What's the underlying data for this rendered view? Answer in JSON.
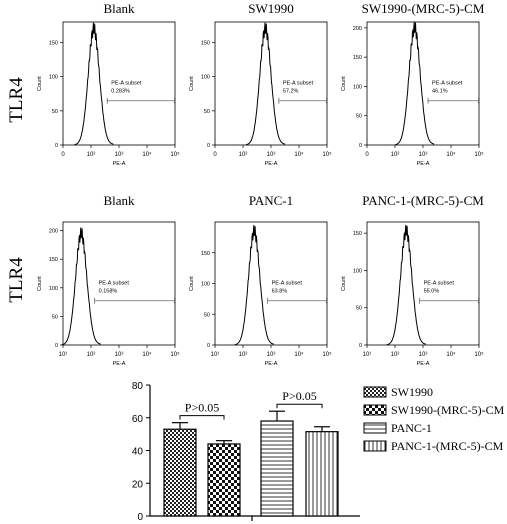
{
  "row_labels": [
    "TLR4",
    "TLR4"
  ],
  "chart_data": [
    {
      "type": "area",
      "title": "Blank",
      "xlabel": "PE-A",
      "ylabel": "Count",
      "xscale": "log",
      "x_ticks": [
        "0",
        "10²",
        "10³",
        "10⁴",
        "10⁵"
      ],
      "y_ticks": [
        "0",
        "50",
        "100",
        "150"
      ],
      "ylim": [
        0,
        180
      ],
      "peak": {
        "log10_x": 2.1,
        "count": 170
      },
      "gate": {
        "name": "PE-A subset",
        "value": "0.283%"
      }
    },
    {
      "type": "area",
      "title": "SW1990",
      "xlabel": "PE-A",
      "ylabel": "Count",
      "xscale": "log",
      "x_ticks": [
        "0",
        "10²",
        "10³",
        "10⁴",
        "10⁵"
      ],
      "y_ticks": [
        "0",
        "50",
        "100",
        "150"
      ],
      "ylim": [
        0,
        180
      ],
      "peak": {
        "log10_x": 2.8,
        "count": 170
      },
      "gate": {
        "name": "PE-A subset",
        "value": "57.2%"
      }
    },
    {
      "type": "area",
      "title": "SW1990-(MRC-5)-CM",
      "xlabel": "PE-A",
      "ylabel": "Count",
      "xscale": "log",
      "x_ticks": [
        "0",
        "10²",
        "10³",
        "10⁴",
        "10⁵"
      ],
      "y_ticks": [
        "0",
        "50",
        "100",
        "150",
        "200"
      ],
      "ylim": [
        0,
        210
      ],
      "peak": {
        "log10_x": 2.7,
        "count": 200
      },
      "gate": {
        "name": "PE-A subset",
        "value": "46.1%"
      }
    },
    {
      "type": "area",
      "title": "Blank",
      "xlabel": "PE-A",
      "ylabel": "Count",
      "xscale": "log",
      "x_ticks": [
        "10¹",
        "10²",
        "10³",
        "10⁴",
        "10⁵"
      ],
      "y_ticks": [
        "0",
        "50",
        "100",
        "150",
        "200"
      ],
      "ylim": [
        0,
        215
      ],
      "peak": {
        "log10_x": 1.65,
        "count": 195
      },
      "gate": {
        "name": "PE-A subset",
        "value": "0.158%"
      }
    },
    {
      "type": "area",
      "title": "PANC-1",
      "xlabel": "PE-A",
      "ylabel": "Count",
      "xscale": "log",
      "x_ticks": [
        "10¹",
        "10²",
        "10³",
        "10⁴",
        "10⁵"
      ],
      "y_ticks": [
        "0",
        "50",
        "100",
        "150"
      ],
      "ylim": [
        0,
        200
      ],
      "peak": {
        "log10_x": 2.4,
        "count": 185
      },
      "gate": {
        "name": "PE-A subset",
        "value": "63.8%"
      }
    },
    {
      "type": "area",
      "title": "PANC-1-(MRC-5)-CM",
      "xlabel": "PE-A",
      "ylabel": "Count",
      "xscale": "log",
      "x_ticks": [
        "10¹",
        "10²",
        "10³",
        "10⁴",
        "10⁵"
      ],
      "y_ticks": [
        "0",
        "50",
        "100",
        "150"
      ],
      "ylim": [
        0,
        165
      ],
      "peak": {
        "log10_x": 2.4,
        "count": 153
      },
      "gate": {
        "name": "PE-A subset",
        "value": "55.0%"
      }
    },
    {
      "type": "bar",
      "y_ticks": [
        0,
        20,
        40,
        60,
        80
      ],
      "ylim": [
        0,
        80
      ],
      "series": [
        {
          "name": "SW1990",
          "value": 53,
          "error": 4,
          "pattern": "dense-check"
        },
        {
          "name": "SW1990-(MRC-5)-CM",
          "value": 44,
          "error": 2,
          "pattern": "checker"
        },
        {
          "name": "PANC-1",
          "value": 58,
          "error": 6,
          "pattern": "horizontal"
        },
        {
          "name": "PANC-1-(MRC-5)-CM",
          "value": 51.5,
          "error": 3,
          "pattern": "vertical"
        }
      ],
      "annotations": [
        {
          "text": "P>0.05",
          "between": [
            0,
            1
          ]
        },
        {
          "text": "P>0.05",
          "between": [
            2,
            3
          ]
        }
      ],
      "legend_position": "right"
    }
  ]
}
